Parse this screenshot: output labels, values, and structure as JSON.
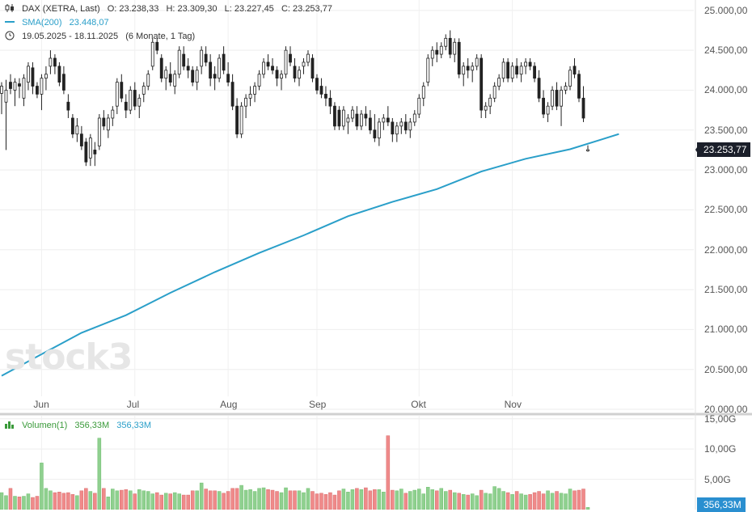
{
  "header": {
    "symbol": "DAX (XETRA, Last)",
    "ohlc": "O: 23.238,33   H: 23.309,30   L: 23.227,45   C: 23.253,77",
    "sma_label": "SMA(200)",
    "sma_value": "23.448,07",
    "range": "19.05.2025 - 18.11.2025",
    "range_detail": "(6 Monate, 1 Tag)"
  },
  "volume_legend": {
    "label": "Volumen(1)",
    "value1": "356,33M",
    "value2": "356,33M"
  },
  "price_tag": "23.253,77",
  "volume_tag": "356,33M",
  "watermark": "stock3",
  "colors": {
    "sma": "#2a9fc9",
    "up_volume": "#8fd08f",
    "down_volume": "#ef8a8a",
    "candle": "#222222",
    "price_tag_bg": "#1b1f2a",
    "volume_tag_bg": "#2a8fd0"
  },
  "chart_data": {
    "type": "candlestick",
    "price_axis": {
      "ticks": [
        "25.000,00",
        "24.500,00",
        "24.000,00",
        "23.500,00",
        "23.000,00",
        "22.500,00",
        "22.000,00",
        "21.500,00",
        "21.000,00",
        "20.500,00",
        "20.000,00"
      ],
      "tick_values": [
        25000,
        24500,
        24000,
        23500,
        23000,
        22500,
        22000,
        21500,
        21000,
        20500,
        20000
      ],
      "range": [
        19960,
        25130
      ]
    },
    "volume_axis": {
      "ticks": [
        "15,00G",
        "10,00G",
        "5,00G"
      ],
      "tick_values": [
        15,
        10,
        5
      ],
      "range": [
        0,
        15.5
      ]
    },
    "x_axis": {
      "labels": [
        "Jun",
        "Jul",
        "Aug",
        "Sep",
        "Okt",
        "Nov"
      ],
      "label_index": [
        9,
        30,
        51,
        71,
        94,
        115
      ]
    },
    "candles": [
      [
        23960,
        24100,
        23700,
        24050,
        2.8
      ],
      [
        23850,
        24130,
        23250,
        24000,
        2.3
      ],
      [
        24100,
        24200,
        23950,
        24020,
        3.5
      ],
      [
        24000,
        24150,
        23800,
        24100,
        2.2
      ],
      [
        24080,
        24150,
        23900,
        24050,
        2.1
      ],
      [
        23900,
        24200,
        23800,
        24150,
        2.2
      ],
      [
        24100,
        24350,
        24000,
        24300,
        2.6
      ],
      [
        24280,
        24350,
        23950,
        24050,
        2.0
      ],
      [
        24050,
        24100,
        23900,
        23950,
        2.2
      ],
      [
        23950,
        24200,
        23750,
        24150,
        7.7
      ],
      [
        24150,
        24300,
        24000,
        24200,
        3.5
      ],
      [
        24300,
        24500,
        24200,
        24400,
        3.1
      ],
      [
        24400,
        24450,
        24200,
        24300,
        2.8
      ],
      [
        24300,
        24350,
        24050,
        24100,
        2.9
      ],
      [
        24200,
        24300,
        23950,
        24000,
        2.7
      ],
      [
        23850,
        23950,
        23650,
        23750,
        2.8
      ],
      [
        23650,
        23700,
        23400,
        23450,
        2.5
      ],
      [
        23450,
        23650,
        23350,
        23550,
        2.3
      ],
      [
        23450,
        23550,
        23250,
        23300,
        3.1
      ],
      [
        23350,
        23400,
        23050,
        23100,
        3.5
      ],
      [
        23150,
        23450,
        23050,
        23400,
        3.0
      ],
      [
        23250,
        23350,
        23050,
        23200,
        2.7
      ],
      [
        23300,
        23700,
        23250,
        23650,
        11.8
      ],
      [
        23650,
        23750,
        23500,
        23550,
        3.5
      ],
      [
        23500,
        23700,
        23400,
        23650,
        2.1
      ],
      [
        23650,
        23800,
        23550,
        23750,
        3.4
      ],
      [
        23800,
        24150,
        23700,
        24100,
        3.1
      ],
      [
        24100,
        24200,
        23850,
        23900,
        3.2
      ],
      [
        23850,
        23950,
        23650,
        23750,
        3.3
      ],
      [
        23750,
        24050,
        23700,
        24000,
        3.1
      ],
      [
        24000,
        24100,
        23750,
        23800,
        2.6
      ],
      [
        23800,
        23950,
        23650,
        23900,
        3.3
      ],
      [
        23950,
        24100,
        23850,
        24050,
        3.1
      ],
      [
        24050,
        24250,
        24000,
        24200,
        3.0
      ],
      [
        24300,
        24650,
        24250,
        24600,
        2.6
      ],
      [
        24600,
        24650,
        24450,
        24500,
        2.8
      ],
      [
        24400,
        24450,
        24100,
        24150,
        2.4
      ],
      [
        24150,
        24300,
        24000,
        24250,
        2.7
      ],
      [
        24200,
        24350,
        24050,
        24100,
        2.6
      ],
      [
        24050,
        24250,
        23950,
        24200,
        2.8
      ],
      [
        24200,
        24550,
        24150,
        24500,
        2.6
      ],
      [
        24450,
        24550,
        24250,
        24300,
        2.4
      ],
      [
        24300,
        24400,
        24150,
        24250,
        2.4
      ],
      [
        24250,
        24300,
        24050,
        24100,
        3.1
      ],
      [
        24100,
        24300,
        24000,
        24250,
        3.1
      ],
      [
        24300,
        24550,
        24200,
        24500,
        4.4
      ],
      [
        24450,
        24550,
        24300,
        24350,
        3.4
      ],
      [
        24350,
        24450,
        24050,
        24150,
        3.1
      ],
      [
        24200,
        24300,
        24000,
        24150,
        3.1
      ],
      [
        24150,
        24450,
        24100,
        24400,
        3.0
      ],
      [
        24450,
        24550,
        24200,
        24250,
        2.7
      ],
      [
        24200,
        24350,
        24050,
        24100,
        3.0
      ],
      [
        24100,
        24200,
        23750,
        23800,
        3.5
      ],
      [
        23800,
        23900,
        23400,
        23450,
        3.5
      ],
      [
        23450,
        23850,
        23400,
        23800,
        4.0
      ],
      [
        23800,
        23950,
        23650,
        23900,
        3.2
      ],
      [
        23900,
        24050,
        23800,
        23950,
        3.3
      ],
      [
        23950,
        24100,
        23850,
        24050,
        3.0
      ],
      [
        24050,
        24250,
        24000,
        24200,
        3.5
      ],
      [
        24200,
        24400,
        24150,
        24350,
        3.6
      ],
      [
        24350,
        24450,
        24250,
        24300,
        3.3
      ],
      [
        24300,
        24400,
        24200,
        24250,
        3.2
      ],
      [
        24250,
        24300,
        24050,
        24150,
        3.0
      ],
      [
        24150,
        24250,
        24000,
        24200,
        2.8
      ],
      [
        24200,
        24550,
        24150,
        24500,
        3.6
      ],
      [
        24450,
        24550,
        24300,
        24350,
        3.1
      ],
      [
        24300,
        24400,
        24100,
        24150,
        3.1
      ],
      [
        24150,
        24300,
        24050,
        24250,
        3.1
      ],
      [
        24300,
        24400,
        24200,
        24350,
        2.8
      ],
      [
        24350,
        24500,
        24300,
        24450,
        3.5
      ],
      [
        24400,
        24450,
        24100,
        24150,
        3.0
      ],
      [
        24150,
        24200,
        23950,
        24000,
        2.6
      ],
      [
        24050,
        24150,
        23900,
        23950,
        2.7
      ],
      [
        23950,
        24050,
        23800,
        23900,
        2.5
      ],
      [
        23900,
        24000,
        23700,
        23800,
        2.8
      ],
      [
        23800,
        23850,
        23500,
        23550,
        2.4
      ],
      [
        23750,
        23800,
        23500,
        23550,
        3.1
      ],
      [
        23550,
        23800,
        23500,
        23750,
        3.4
      ],
      [
        23600,
        23700,
        23450,
        23650,
        2.9
      ],
      [
        23650,
        23800,
        23600,
        23750,
        3.3
      ],
      [
        23700,
        23800,
        23500,
        23550,
        3.5
      ],
      [
        23550,
        23750,
        23500,
        23700,
        3.3
      ],
      [
        23700,
        23800,
        23550,
        23650,
        3.6
      ],
      [
        23650,
        23750,
        23450,
        23500,
        3.1
      ],
      [
        23500,
        23700,
        23350,
        23400,
        3.3
      ],
      [
        23400,
        23650,
        23300,
        23600,
        3.3
      ],
      [
        23600,
        23700,
        23500,
        23650,
        2.9
      ],
      [
        23650,
        23800,
        23550,
        23600,
        12.2
      ],
      [
        23600,
        23650,
        23350,
        23450,
        3.2
      ],
      [
        23450,
        23600,
        23350,
        23550,
        3.1
      ],
      [
        23550,
        23650,
        23450,
        23600,
        3.4
      ],
      [
        23600,
        23700,
        23450,
        23500,
        2.7
      ],
      [
        23500,
        23650,
        23400,
        23600,
        3.0
      ],
      [
        23600,
        23750,
        23550,
        23700,
        3.2
      ],
      [
        23700,
        23950,
        23650,
        23900,
        3.4
      ],
      [
        23900,
        24100,
        23800,
        24050,
        2.6
      ],
      [
        24100,
        24450,
        24050,
        24400,
        3.7
      ],
      [
        24400,
        24550,
        24300,
        24500,
        3.3
      ],
      [
        24500,
        24600,
        24350,
        24450,
        3.1
      ],
      [
        24450,
        24600,
        24400,
        24550,
        3.5
      ],
      [
        24550,
        24700,
        24500,
        24650,
        3.0
      ],
      [
        24650,
        24750,
        24400,
        24450,
        3.2
      ],
      [
        24450,
        24650,
        24350,
        24600,
        2.8
      ],
      [
        24600,
        24650,
        24150,
        24200,
        2.7
      ],
      [
        24200,
        24350,
        24050,
        24300,
        2.5
      ],
      [
        24300,
        24400,
        24150,
        24250,
        2.4
      ],
      [
        24250,
        24350,
        24100,
        24300,
        2.6
      ],
      [
        24300,
        24450,
        24250,
        24400,
        2.3
      ],
      [
        24400,
        24450,
        23650,
        23750,
        3.2
      ],
      [
        23750,
        23850,
        23650,
        23800,
        2.7
      ],
      [
        23800,
        23950,
        23700,
        23900,
        2.6
      ],
      [
        23900,
        24100,
        23850,
        24050,
        3.8
      ],
      [
        24050,
        24200,
        24000,
        24150,
        3.5
      ],
      [
        24150,
        24400,
        24100,
        24350,
        3.0
      ],
      [
        24350,
        24400,
        24100,
        24150,
        2.8
      ],
      [
        24150,
        24350,
        24100,
        24300,
        2.5
      ],
      [
        24300,
        24400,
        24150,
        24200,
        3.0
      ],
      [
        24200,
        24350,
        24100,
        24300,
        2.6
      ],
      [
        24300,
        24400,
        24200,
        24350,
        2.4
      ],
      [
        24350,
        24400,
        24250,
        24300,
        2.5
      ],
      [
        24300,
        24350,
        24100,
        24150,
        2.8
      ],
      [
        24150,
        24250,
        23850,
        23900,
        3.0
      ],
      [
        23900,
        24000,
        23650,
        23700,
        2.6
      ],
      [
        23700,
        23850,
        23600,
        23800,
        3.1
      ],
      [
        23800,
        24050,
        23750,
        24000,
        2.7
      ],
      [
        24000,
        24100,
        23750,
        23800,
        3.0
      ],
      [
        23800,
        24050,
        23550,
        24000,
        2.7
      ],
      [
        24000,
        24100,
        23950,
        24050,
        2.6
      ],
      [
        24050,
        24300,
        24000,
        24250,
        3.4
      ],
      [
        24300,
        24400,
        24150,
        24200,
        3.1
      ],
      [
        24200,
        24250,
        23850,
        23900,
        3.2
      ],
      [
        23900,
        24050,
        23600,
        23650,
        3.4
      ],
      [
        23238.33,
        23309.3,
        23227.45,
        23253.77,
        0.36
      ]
    ],
    "sma": [
      [
        0,
        20420
      ],
      [
        8,
        20660
      ],
      [
        18,
        20960
      ],
      [
        28,
        21180
      ],
      [
        38,
        21460
      ],
      [
        48,
        21720
      ],
      [
        58,
        21960
      ],
      [
        68,
        22180
      ],
      [
        78,
        22420
      ],
      [
        88,
        22600
      ],
      [
        98,
        22760
      ],
      [
        108,
        22980
      ],
      [
        118,
        23140
      ],
      [
        128,
        23260
      ],
      [
        135,
        23380
      ],
      [
        139,
        23450
      ]
    ],
    "last_price": 23253.77,
    "sma_last": 23448.07
  }
}
